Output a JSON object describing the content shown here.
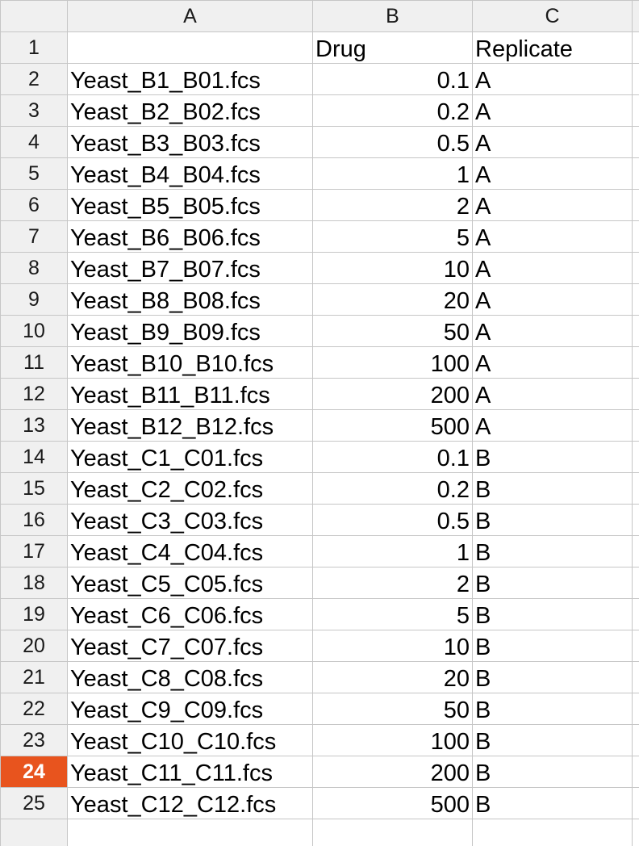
{
  "columns": [
    "A",
    "B",
    "C"
  ],
  "active_row": 24,
  "accent_color": "#e8541e",
  "header_row": {
    "row": "1",
    "a": "",
    "b": "Drug",
    "c": "Replicate"
  },
  "rows": [
    {
      "row": "2",
      "file": "Yeast_B1_B01.fcs",
      "drug": "0.1",
      "replicate": "A"
    },
    {
      "row": "3",
      "file": "Yeast_B2_B02.fcs",
      "drug": "0.2",
      "replicate": "A"
    },
    {
      "row": "4",
      "file": "Yeast_B3_B03.fcs",
      "drug": "0.5",
      "replicate": "A"
    },
    {
      "row": "5",
      "file": "Yeast_B4_B04.fcs",
      "drug": "1",
      "replicate": "A"
    },
    {
      "row": "6",
      "file": "Yeast_B5_B05.fcs",
      "drug": "2",
      "replicate": "A"
    },
    {
      "row": "7",
      "file": "Yeast_B6_B06.fcs",
      "drug": "5",
      "replicate": "A"
    },
    {
      "row": "8",
      "file": "Yeast_B7_B07.fcs",
      "drug": "10",
      "replicate": "A"
    },
    {
      "row": "9",
      "file": "Yeast_B8_B08.fcs",
      "drug": "20",
      "replicate": "A"
    },
    {
      "row": "10",
      "file": "Yeast_B9_B09.fcs",
      "drug": "50",
      "replicate": "A"
    },
    {
      "row": "11",
      "file": "Yeast_B10_B10.fcs",
      "drug": "100",
      "replicate": "A"
    },
    {
      "row": "12",
      "file": "Yeast_B11_B11.fcs",
      "drug": "200",
      "replicate": "A"
    },
    {
      "row": "13",
      "file": "Yeast_B12_B12.fcs",
      "drug": "500",
      "replicate": "A"
    },
    {
      "row": "14",
      "file": "Yeast_C1_C01.fcs",
      "drug": "0.1",
      "replicate": "B"
    },
    {
      "row": "15",
      "file": "Yeast_C2_C02.fcs",
      "drug": "0.2",
      "replicate": "B"
    },
    {
      "row": "16",
      "file": "Yeast_C3_C03.fcs",
      "drug": "0.5",
      "replicate": "B"
    },
    {
      "row": "17",
      "file": "Yeast_C4_C04.fcs",
      "drug": "1",
      "replicate": "B"
    },
    {
      "row": "18",
      "file": "Yeast_C5_C05.fcs",
      "drug": "2",
      "replicate": "B"
    },
    {
      "row": "19",
      "file": "Yeast_C6_C06.fcs",
      "drug": "5",
      "replicate": "B"
    },
    {
      "row": "20",
      "file": "Yeast_C7_C07.fcs",
      "drug": "10",
      "replicate": "B"
    },
    {
      "row": "21",
      "file": "Yeast_C8_C08.fcs",
      "drug": "20",
      "replicate": "B"
    },
    {
      "row": "22",
      "file": "Yeast_C9_C09.fcs",
      "drug": "50",
      "replicate": "B"
    },
    {
      "row": "23",
      "file": "Yeast_C10_C10.fcs",
      "drug": "100",
      "replicate": "B"
    },
    {
      "row": "24",
      "file": "Yeast_C11_C11.fcs",
      "drug": "200",
      "replicate": "B"
    },
    {
      "row": "25",
      "file": "Yeast_C12_C12.fcs",
      "drug": "500",
      "replicate": "B"
    }
  ]
}
